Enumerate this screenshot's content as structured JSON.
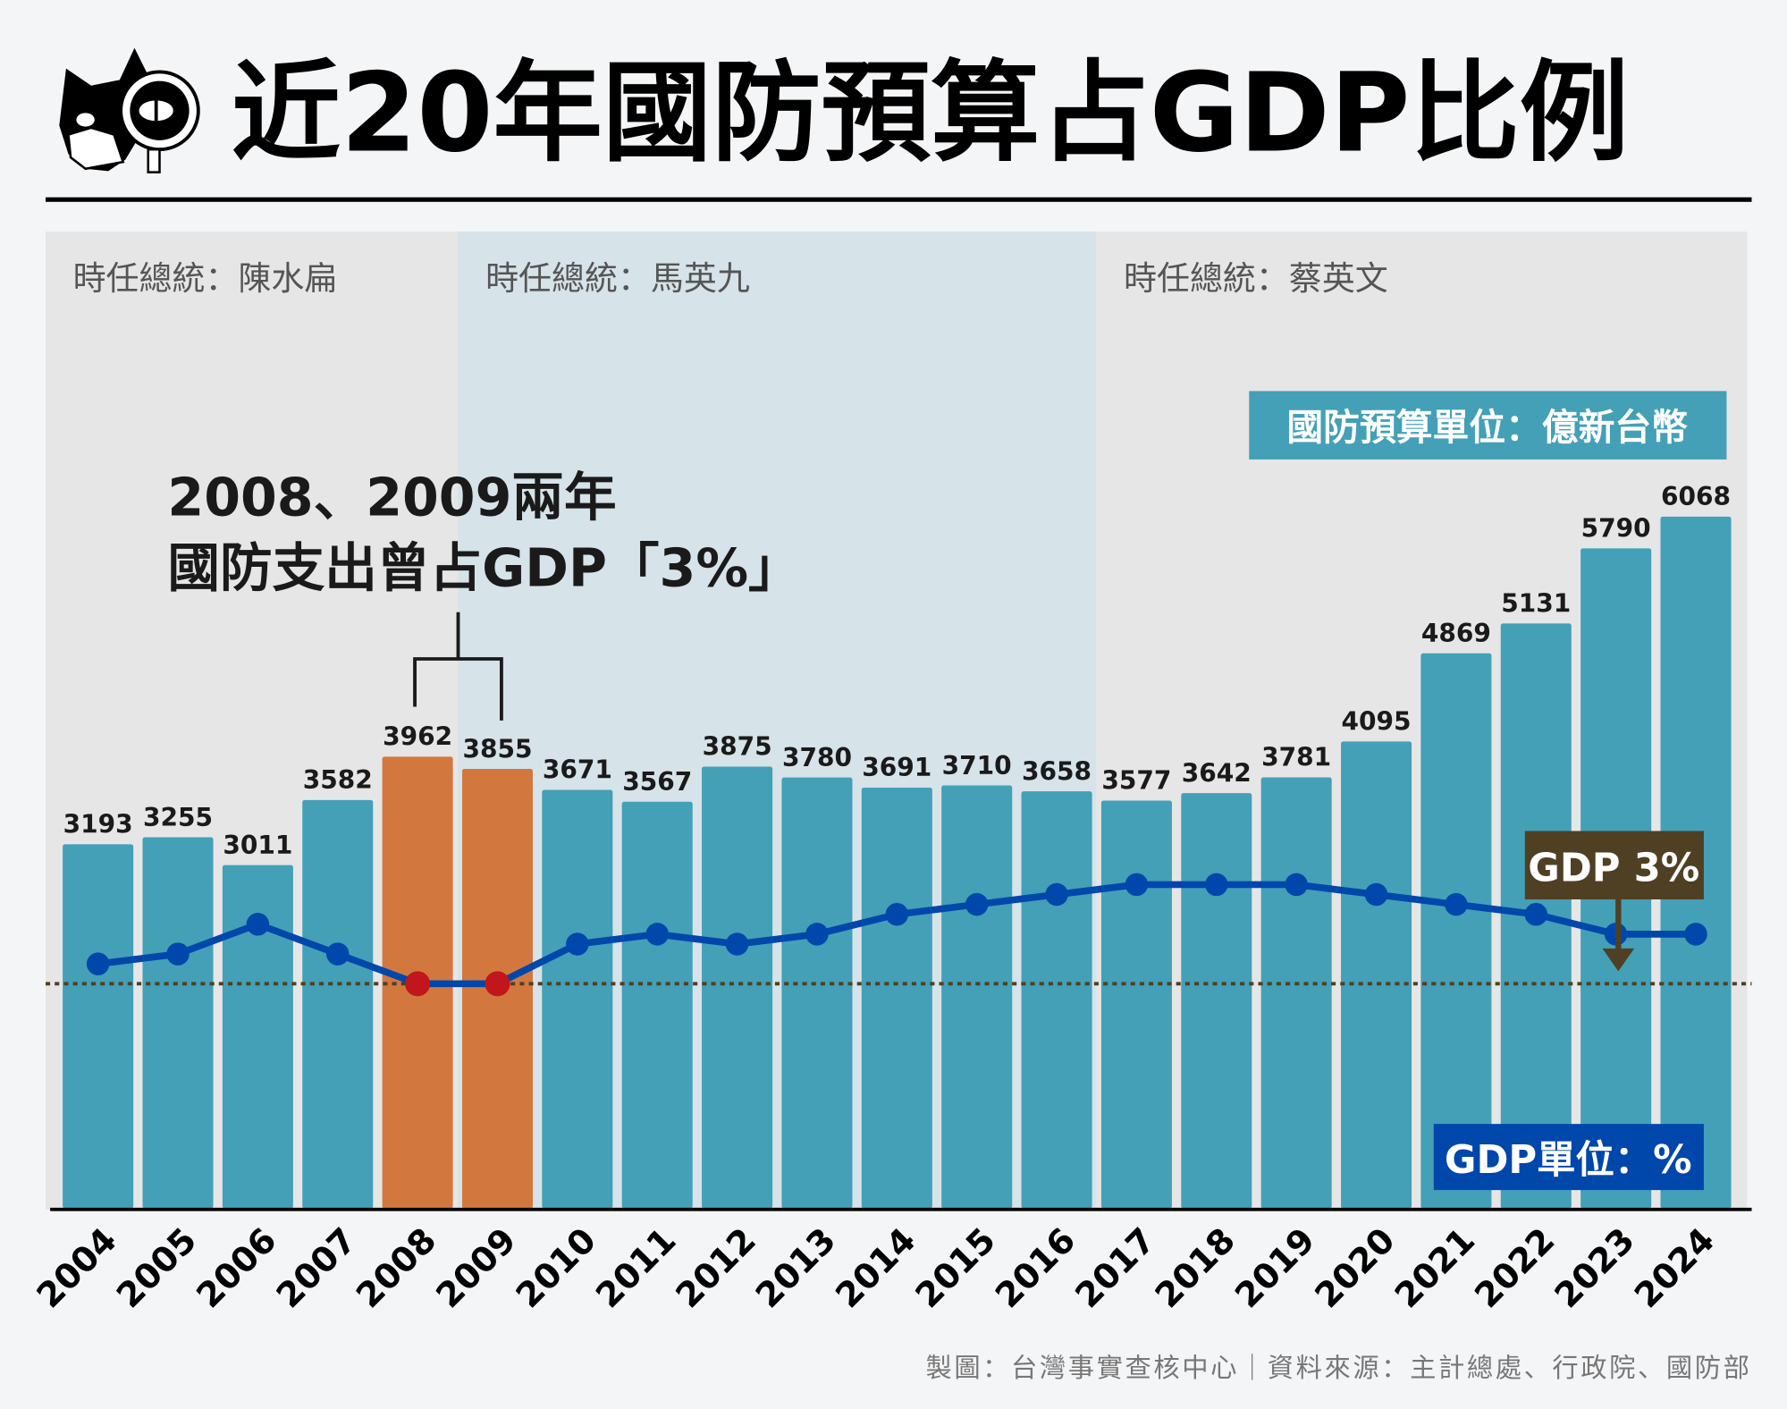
{
  "title": "近20年國防預算占GDP比例",
  "logo": "cat-with-magnifier",
  "periods": [
    {
      "label": "時任總統：陳水扁",
      "from": "2004",
      "to": "2008",
      "color": "#e6e6e6"
    },
    {
      "label": "時任總統：馬英九",
      "from": "2008",
      "to": "2016",
      "color": "#d6e3e8"
    },
    {
      "label": "時任總統：蔡英文",
      "from": "2016",
      "to": "2024",
      "color": "#e6e6e6"
    }
  ],
  "annotation": {
    "line1": "2008、2009兩年",
    "line2": "國防支出曾占GDP「3%」"
  },
  "budget_unit_label": "國防預算單位：億新台幣",
  "gdp3_label": "GDP 3%",
  "gdp_unit_label": "GDP單位：%",
  "footer": "製圖：台灣事實查核中心｜資料來源：主計總處、行政院、國防部",
  "colors": {
    "bar": "#43a0b7",
    "highlight": "#d2783f",
    "line": "#0047ab",
    "highlight_dot": "#c0161c",
    "reference": "#4f4024"
  },
  "chart_data": {
    "type": "bar+line",
    "categories": [
      "2004",
      "2005",
      "2006",
      "2007",
      "2008",
      "2009",
      "2010",
      "2011",
      "2012",
      "2013",
      "2014",
      "2015",
      "2016",
      "2017",
      "2018",
      "2019",
      "2020",
      "2021",
      "2022",
      "2023",
      "2024"
    ],
    "series": [
      {
        "name": "國防預算",
        "unit": "億新台幣",
        "type": "bar",
        "values": [
          3193,
          3255,
          3011,
          3582,
          3962,
          3855,
          3671,
          3567,
          3875,
          3780,
          3691,
          3710,
          3658,
          3577,
          3642,
          3781,
          4095,
          4869,
          5131,
          5790,
          6068
        ],
        "highlight": [
          "2008",
          "2009"
        ]
      },
      {
        "name": "GDP",
        "unit": "%",
        "type": "line",
        "values": [
          2.8,
          2.7,
          2.4,
          2.7,
          3.0,
          3.0,
          2.6,
          2.5,
          2.6,
          2.5,
          2.3,
          2.2,
          2.1,
          2.0,
          2.0,
          2.0,
          2.1,
          2.2,
          2.3,
          2.5,
          2.5
        ],
        "highlight": [
          "2008",
          "2009"
        ]
      }
    ],
    "reference_line": {
      "value": 3,
      "label": "GDP 3%",
      "style": "dotted"
    },
    "grid": false
  }
}
